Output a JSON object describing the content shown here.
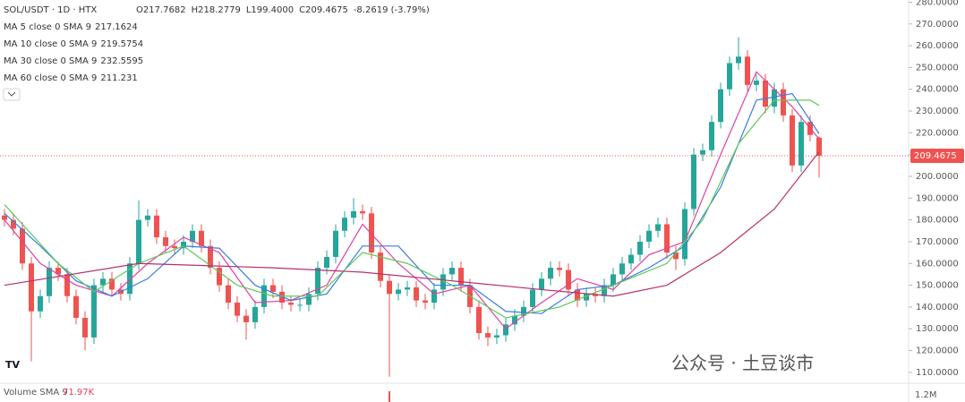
{
  "chart_data": {
    "type": "candlestick",
    "title": "SOL/USDT · 1D · HTX",
    "ohlc_legend": [
      "O217.7682",
      "H218.2779",
      "L199.4000",
      "C209.4675",
      "-8.2619 (-3.79%)"
    ],
    "up_color": "#26a69a",
    "down_color": "#ef5350",
    "open": [
      182,
      180,
      176,
      160,
      138,
      145,
      158,
      155,
      145,
      135,
      126,
      150,
      153,
      148,
      146,
      160,
      180,
      182,
      172,
      168,
      167,
      170,
      175,
      168,
      158,
      150,
      142,
      136,
      133,
      140,
      150,
      147,
      142,
      141,
      141,
      146,
      158,
      163,
      175,
      181,
      184,
      183,
      165,
      152,
      146,
      148,
      149,
      143,
      142,
      148,
      155,
      158,
      150,
      140,
      128,
      126,
      127,
      132,
      136,
      140,
      148,
      153,
      158,
      157,
      148,
      143,
      146,
      145,
      150,
      155,
      160,
      164,
      170,
      175,
      178,
      165,
      162,
      185,
      210,
      212,
      225,
      240,
      252,
      255,
      242,
      244,
      232,
      240,
      228,
      205,
      225,
      217.7682
    ],
    "high": [
      185,
      183,
      179,
      163,
      148,
      161,
      161,
      158,
      148,
      138,
      153,
      156,
      156,
      151,
      163,
      189,
      185,
      185,
      175,
      171,
      173,
      178,
      178,
      171,
      161,
      153,
      145,
      139,
      143,
      153,
      153,
      150,
      145,
      144,
      149,
      161,
      166,
      178,
      184,
      190,
      187,
      186,
      168,
      155,
      151,
      152,
      152,
      146,
      151,
      158,
      161,
      161,
      153,
      143,
      131,
      130,
      135,
      139,
      143,
      151,
      156,
      161,
      161,
      160,
      151,
      149,
      149,
      153,
      158,
      163,
      167,
      173,
      178,
      181,
      181,
      168,
      188,
      213,
      215,
      228,
      243,
      255,
      264,
      258,
      247,
      247,
      243,
      243,
      231,
      228,
      228,
      218.2779
    ],
    "low": [
      177,
      173,
      157,
      115,
      135,
      142,
      152,
      142,
      132,
      120,
      123,
      147,
      145,
      143,
      143,
      157,
      177,
      169,
      165,
      164,
      164,
      167,
      165,
      155,
      147,
      139,
      133,
      125,
      130,
      137,
      144,
      139,
      138,
      138,
      138,
      143,
      155,
      160,
      172,
      178,
      180,
      162,
      149,
      108,
      143,
      145,
      140,
      139,
      139,
      145,
      152,
      147,
      137,
      125,
      122,
      123,
      124,
      129,
      133,
      137,
      145,
      150,
      154,
      145,
      140,
      140,
      142,
      142,
      147,
      152,
      157,
      161,
      167,
      172,
      162,
      157,
      159,
      182,
      207,
      209,
      222,
      237,
      249,
      239,
      239,
      229,
      229,
      225,
      202,
      202,
      216,
      199.4
    ],
    "close": [
      180,
      176,
      160,
      138,
      145,
      158,
      155,
      145,
      135,
      126,
      150,
      153,
      148,
      146,
      160,
      180,
      182,
      172,
      168,
      167,
      170,
      175,
      168,
      158,
      150,
      142,
      136,
      133,
      140,
      150,
      147,
      142,
      141,
      141,
      146,
      158,
      163,
      175,
      181,
      184,
      183,
      165,
      152,
      146,
      148,
      149,
      143,
      142,
      148,
      155,
      158,
      150,
      140,
      128,
      126,
      127,
      132,
      136,
      140,
      148,
      153,
      158,
      157,
      148,
      143,
      146,
      145,
      150,
      155,
      160,
      164,
      170,
      175,
      178,
      165,
      162,
      185,
      210,
      212,
      225,
      240,
      252,
      255,
      242,
      244,
      232,
      240,
      228,
      205,
      225,
      219,
      209.4675
    ],
    "series": [
      {
        "name": "MA 5 close 0 SMA 9",
        "color": "#e040a0",
        "x": [
          0,
          4,
          8,
          12,
          16,
          20,
          24,
          28,
          32,
          36,
          40,
          44,
          48,
          52,
          56,
          60,
          64,
          68,
          72,
          76,
          80,
          84,
          88,
          91
        ],
        "values": [
          180,
          160,
          150,
          145,
          160,
          172,
          165,
          142,
          143,
          150,
          178,
          160,
          146,
          150,
          130,
          142,
          153,
          148,
          164,
          170,
          210,
          248,
          232,
          217.1624
        ]
      },
      {
        "name": "MA 10 close 0 SMA 9",
        "color": "#3d7be0",
        "x": [
          0,
          4,
          8,
          12,
          16,
          20,
          24,
          28,
          32,
          36,
          40,
          44,
          48,
          52,
          56,
          60,
          64,
          68,
          72,
          76,
          80,
          84,
          88,
          91
        ],
        "values": [
          183,
          168,
          152,
          145,
          153,
          168,
          167,
          150,
          143,
          146,
          168,
          168,
          150,
          150,
          138,
          137,
          148,
          150,
          158,
          168,
          195,
          235,
          238,
          219.5754
        ]
      },
      {
        "name": "MA 30 close 0 SMA 9",
        "color": "#5cc95c",
        "x": [
          0,
          6,
          10,
          15,
          20,
          26,
          30,
          35,
          40,
          45,
          50,
          56,
          62,
          68,
          74,
          78,
          82,
          86,
          90,
          91
        ],
        "values": [
          187,
          160,
          147,
          160,
          168,
          150,
          145,
          145,
          165,
          160,
          150,
          135,
          140,
          150,
          160,
          180,
          215,
          235,
          235,
          232.5595
        ]
      },
      {
        "name": "MA 60 close 0 SMA 9",
        "color": "#b5306e",
        "x": [
          0,
          15,
          30,
          40,
          50,
          60,
          68,
          74,
          80,
          86,
          91
        ],
        "values": [
          150,
          160,
          158,
          156,
          152,
          148,
          145,
          150,
          165,
          185,
          211.231
        ]
      }
    ],
    "ylim": [
      105,
      281
    ],
    "yticks": [
      {
        "value": 280,
        "label": "280.0000"
      },
      {
        "value": 270,
        "label": "270.0000"
      },
      {
        "value": 260,
        "label": "260.0000"
      },
      {
        "value": 250,
        "label": "250.0000"
      },
      {
        "value": 240,
        "label": "240.0000"
      },
      {
        "value": 230,
        "label": "230.0000"
      },
      {
        "value": 220,
        "label": "220.0000"
      },
      {
        "value": 210,
        "label": "210.0000"
      },
      {
        "value": 200,
        "label": "200.0000"
      },
      {
        "value": 190,
        "label": "190.0000"
      },
      {
        "value": 180,
        "label": "180.0000"
      },
      {
        "value": 170,
        "label": "170.0000"
      },
      {
        "value": 160,
        "label": "160.0000"
      },
      {
        "value": 150,
        "label": "150.0000"
      },
      {
        "value": 140,
        "label": "140.0000"
      },
      {
        "value": 130,
        "label": "130.0000"
      },
      {
        "value": 120,
        "label": "120.0000"
      },
      {
        "value": 110,
        "label": "110.0000"
      }
    ],
    "grid": false,
    "volume": {
      "title": "Volume SMA 9",
      "sma_label": "71.97K",
      "ytick_label": "1.2M"
    },
    "watermark": "公众号 · 土豆谈市"
  }
}
